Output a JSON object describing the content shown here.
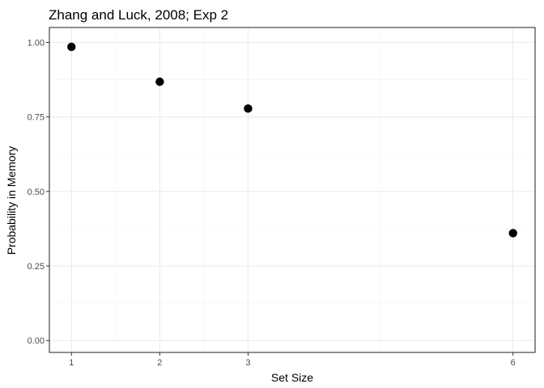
{
  "chart_data": {
    "type": "scatter",
    "title": "Zhang and Luck, 2008; Exp 2",
    "xlabel": "Set Size",
    "ylabel": "Probability in Memory",
    "x": [
      1,
      2,
      3,
      6
    ],
    "y": [
      0.985,
      0.868,
      0.778,
      0.36
    ],
    "xlim": [
      0.75,
      6.25
    ],
    "ylim": [
      -0.04,
      1.05
    ],
    "x_ticks": [
      1,
      2,
      3,
      6
    ],
    "x_tick_labels": [
      "1",
      "2",
      "3",
      "6"
    ],
    "x_minor_ticks": [
      1.5,
      2.5,
      4.5
    ],
    "y_ticks": [
      0,
      0.25,
      0.5,
      0.75,
      1.0
    ],
    "y_tick_labels": [
      "0.00",
      "0.25",
      "0.50",
      "0.75",
      "1.00"
    ],
    "y_minor_ticks": [
      0.125,
      0.375,
      0.625,
      0.875
    ],
    "grid": true,
    "colors": {
      "point": "#000000",
      "grid_major": "#ebebeb",
      "grid_minor": "#f5f5f5",
      "panel_border": "#333333",
      "tick_text": "#4d4d4d"
    }
  }
}
